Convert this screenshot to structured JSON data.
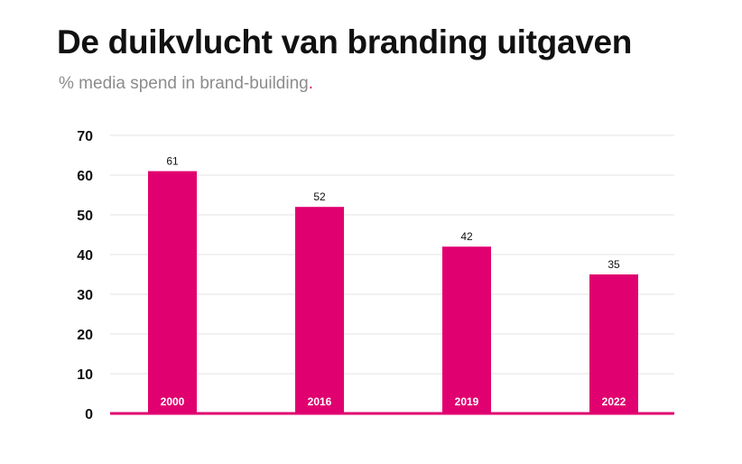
{
  "header": {
    "title": "De duikvlucht van branding uitgaven",
    "subtitle": "% media spend in brand-building",
    "subtitle_dot": "."
  },
  "colors": {
    "bar": "#e0006f",
    "grid": "#e3e3e3",
    "axis": "#e0006f"
  },
  "chart_data": {
    "type": "bar",
    "categories": [
      "2000",
      "2016",
      "2019",
      "2022"
    ],
    "values": [
      61,
      52,
      42,
      35
    ],
    "ylim": [
      0,
      70
    ],
    "yticks": [
      0,
      10,
      20,
      30,
      40,
      50,
      60,
      70
    ],
    "grid": true,
    "data_labels": true,
    "category_labels_inside_bars": true
  }
}
